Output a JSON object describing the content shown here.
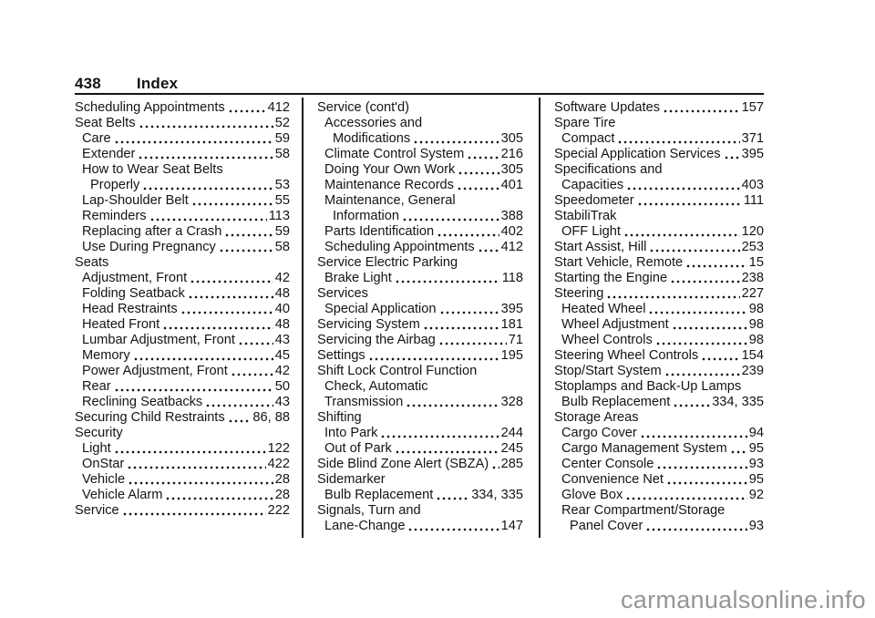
{
  "header": {
    "page_number": "438",
    "title": "Index"
  },
  "watermark": "carmanualsonline.info",
  "colors": {
    "text": "#141414",
    "rule": "#141414",
    "watermark": "#959595"
  },
  "columns": [
    {
      "entries": [
        {
          "t": "Scheduling Appointments",
          "p": "412",
          "i": 0
        },
        {
          "t": "Seat Belts",
          "p": "52",
          "i": 0
        },
        {
          "t": "Care",
          "p": "59",
          "i": 1
        },
        {
          "t": "Extender",
          "p": "58",
          "i": 1
        },
        {
          "t": "How to Wear Seat Belts",
          "p": "",
          "i": 1
        },
        {
          "t": "Properly",
          "p": "53",
          "i": 2
        },
        {
          "t": "Lap-Shoulder Belt",
          "p": "55",
          "i": 1
        },
        {
          "t": "Reminders",
          "p": "113",
          "i": 1
        },
        {
          "t": "Replacing after a Crash",
          "p": "59",
          "i": 1
        },
        {
          "t": "Use During Pregnancy",
          "p": "58",
          "i": 1
        },
        {
          "t": "Seats",
          "p": "",
          "i": 0
        },
        {
          "t": "Adjustment, Front",
          "p": "42",
          "i": 1
        },
        {
          "t": "Folding Seatback",
          "p": "48",
          "i": 1
        },
        {
          "t": "Head Restraints",
          "p": "40",
          "i": 1
        },
        {
          "t": "Heated Front",
          "p": "48",
          "i": 1
        },
        {
          "t": "Lumbar Adjustment, Front",
          "p": "43",
          "i": 1
        },
        {
          "t": "Memory",
          "p": "45",
          "i": 1
        },
        {
          "t": "Power Adjustment, Front",
          "p": "42",
          "i": 1
        },
        {
          "t": "Rear",
          "p": "50",
          "i": 1
        },
        {
          "t": "Reclining Seatbacks",
          "p": "43",
          "i": 1
        },
        {
          "t": "Securing Child Restraints",
          "p": "86, 88",
          "i": 0
        },
        {
          "t": "Security",
          "p": "",
          "i": 0
        },
        {
          "t": "Light",
          "p": "122",
          "i": 1
        },
        {
          "t": "OnStar",
          "p": "422",
          "i": 1
        },
        {
          "t": "Vehicle",
          "p": "28",
          "i": 1
        },
        {
          "t": "Vehicle Alarm",
          "p": "28",
          "i": 1
        },
        {
          "t": "Service",
          "p": "222",
          "i": 0
        }
      ]
    },
    {
      "entries": [
        {
          "t": "Service (cont'd)",
          "p": "",
          "i": 0
        },
        {
          "t": "Accessories and",
          "p": "",
          "i": 1
        },
        {
          "t": "Modifications",
          "p": "305",
          "i": 2
        },
        {
          "t": "Climate Control System",
          "p": "216",
          "i": 1
        },
        {
          "t": "Doing Your Own Work",
          "p": "305",
          "i": 1
        },
        {
          "t": "Maintenance Records",
          "p": "401",
          "i": 1
        },
        {
          "t": "Maintenance, General",
          "p": "",
          "i": 1
        },
        {
          "t": "Information",
          "p": "388",
          "i": 2
        },
        {
          "t": "Parts Identification",
          "p": "402",
          "i": 1
        },
        {
          "t": "Scheduling Appointments",
          "p": "412",
          "i": 1
        },
        {
          "t": "Service Electric Parking",
          "p": "",
          "i": 0
        },
        {
          "t": "Brake Light",
          "p": "118",
          "i": 1
        },
        {
          "t": "Services",
          "p": "",
          "i": 0
        },
        {
          "t": "Special Application",
          "p": "395",
          "i": 1
        },
        {
          "t": "Servicing System",
          "p": "181",
          "i": 0
        },
        {
          "t": "Servicing the Airbag",
          "p": "71",
          "i": 0
        },
        {
          "t": "Settings",
          "p": "195",
          "i": 0
        },
        {
          "t": "Shift Lock Control Function",
          "p": "",
          "i": 0
        },
        {
          "t": "Check, Automatic",
          "p": "",
          "i": 1
        },
        {
          "t": "Transmission",
          "p": "328",
          "i": 1
        },
        {
          "t": "Shifting",
          "p": "",
          "i": 0
        },
        {
          "t": "Into Park",
          "p": "244",
          "i": 1
        },
        {
          "t": "Out of Park",
          "p": "245",
          "i": 1
        },
        {
          "t": "Side Blind Zone Alert (SBZA)",
          "p": "285",
          "i": 0
        },
        {
          "t": "Sidemarker",
          "p": "",
          "i": 0
        },
        {
          "t": "Bulb Replacement",
          "p": "334, 335",
          "i": 1
        },
        {
          "t": "Signals, Turn and",
          "p": "",
          "i": 0
        },
        {
          "t": "Lane-Change",
          "p": "147",
          "i": 1
        }
      ]
    },
    {
      "entries": [
        {
          "t": "Software Updates",
          "p": "157",
          "i": 0
        },
        {
          "t": "Spare Tire",
          "p": "",
          "i": 0
        },
        {
          "t": "Compact",
          "p": "371",
          "i": 1
        },
        {
          "t": "Special Application Services",
          "p": "395",
          "i": 0
        },
        {
          "t": "Specifications and",
          "p": "",
          "i": 0
        },
        {
          "t": "Capacities",
          "p": "403",
          "i": 1
        },
        {
          "t": "Speedometer",
          "p": "111",
          "i": 0
        },
        {
          "t": "StabiliTrak",
          "p": "",
          "i": 0
        },
        {
          "t": "OFF Light",
          "p": "120",
          "i": 1
        },
        {
          "t": "Start Assist, Hill",
          "p": "253",
          "i": 0
        },
        {
          "t": "Start Vehicle, Remote",
          "p": "15",
          "i": 0
        },
        {
          "t": "Starting the Engine",
          "p": "238",
          "i": 0
        },
        {
          "t": "Steering",
          "p": "227",
          "i": 0
        },
        {
          "t": "Heated Wheel",
          "p": "98",
          "i": 1
        },
        {
          "t": "Wheel Adjustment",
          "p": "98",
          "i": 1
        },
        {
          "t": "Wheel Controls",
          "p": "98",
          "i": 1
        },
        {
          "t": "Steering Wheel Controls",
          "p": "154",
          "i": 0
        },
        {
          "t": "Stop/Start System",
          "p": "239",
          "i": 0
        },
        {
          "t": "Stoplamps and Back-Up Lamps",
          "p": "",
          "i": 0
        },
        {
          "t": "Bulb Replacement",
          "p": "334, 335",
          "i": 1
        },
        {
          "t": "Storage Areas",
          "p": "",
          "i": 0
        },
        {
          "t": "Cargo Cover",
          "p": "94",
          "i": 1
        },
        {
          "t": "Cargo Management System",
          "p": "95",
          "i": 1
        },
        {
          "t": "Center Console",
          "p": "93",
          "i": 1
        },
        {
          "t": "Convenience Net",
          "p": "95",
          "i": 1
        },
        {
          "t": "Glove Box",
          "p": "92",
          "i": 1
        },
        {
          "t": "Rear Compartment/Storage",
          "p": "",
          "i": 1
        },
        {
          "t": "Panel Cover",
          "p": "93",
          "i": 2
        }
      ]
    }
  ]
}
